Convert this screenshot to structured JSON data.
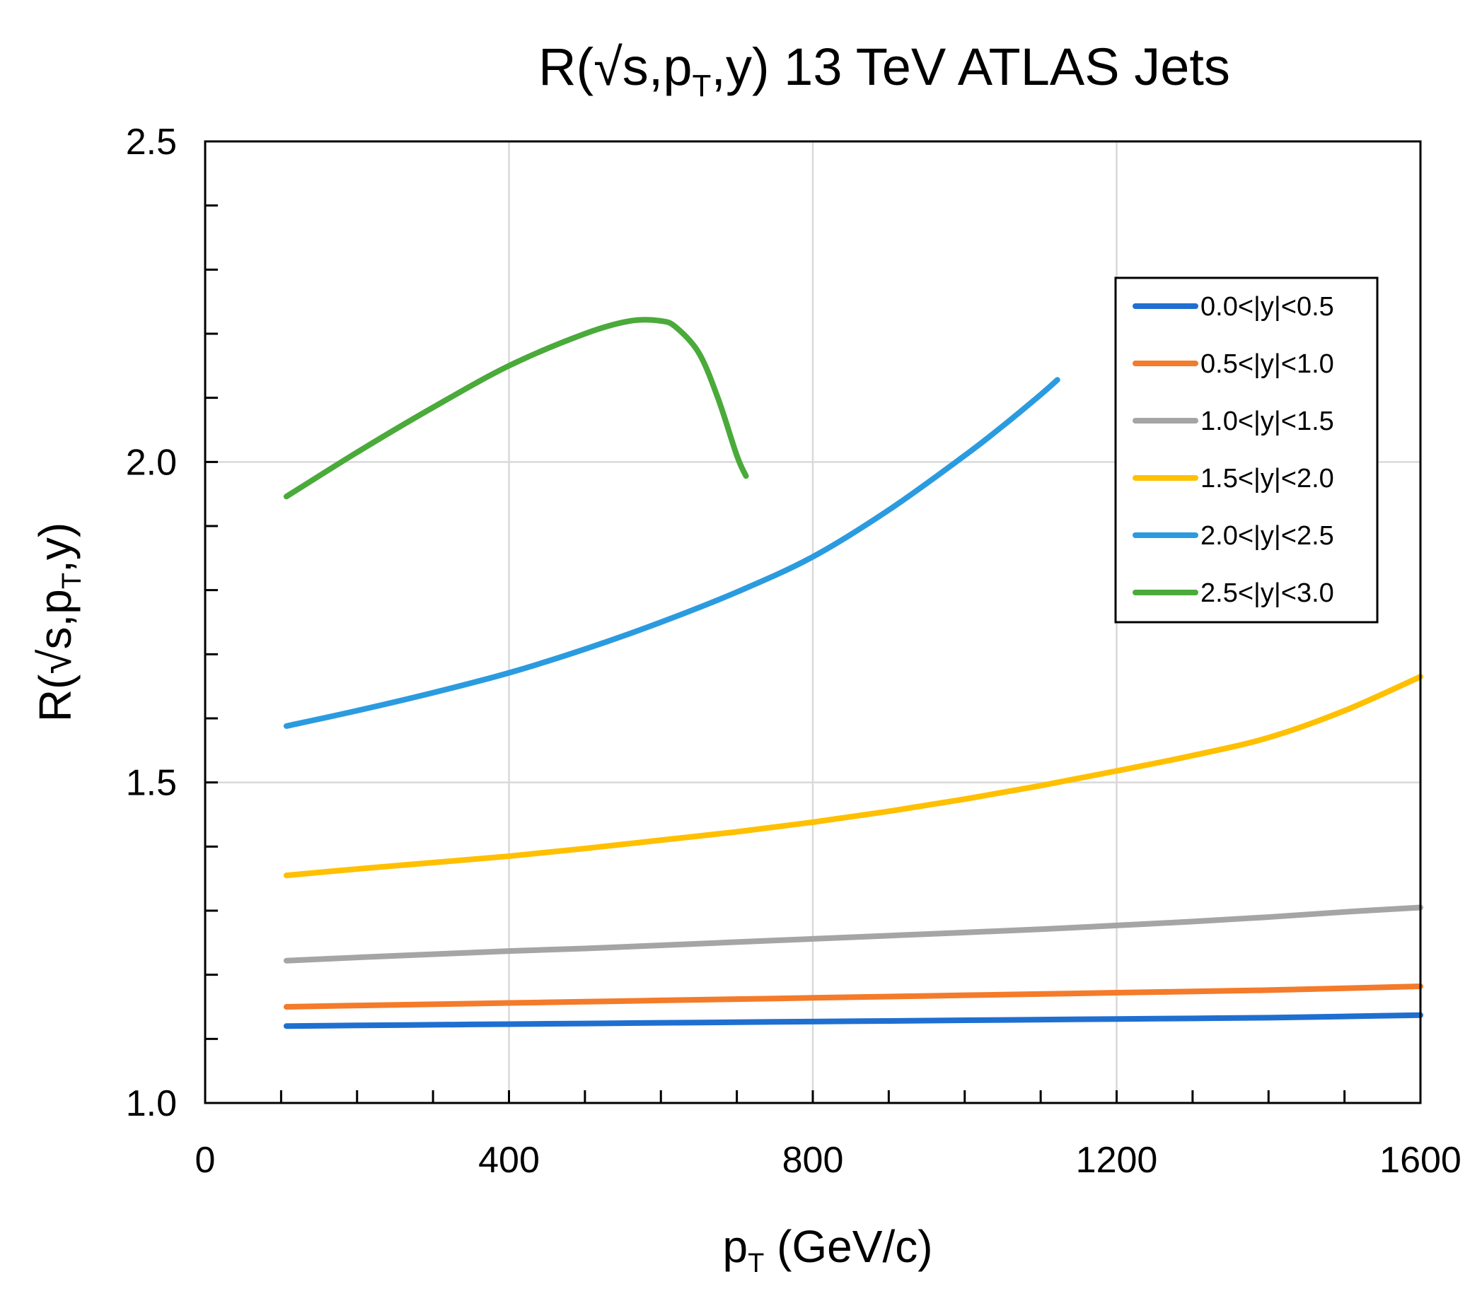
{
  "chart_data": {
    "type": "line",
    "title": {
      "pre": "R(√s,p",
      "sub": "T",
      "post": ",y) 13 TeV ATLAS Jets"
    },
    "xlabel": {
      "pre": "p",
      "sub": "T",
      "post": " (GeV/c)"
    },
    "ylabel": {
      "pre": "R(√s,p",
      "sub": "T",
      "post": ",y)"
    },
    "xlim": [
      0,
      1600
    ],
    "ylim": [
      1.0,
      2.5
    ],
    "xticks": [
      "0",
      "400",
      "800",
      "1200",
      "1600"
    ],
    "yticks": [
      "1.0",
      "1.5",
      "2.0",
      "2.5"
    ],
    "grid": true,
    "legend_position": "right, upper",
    "series": [
      {
        "name": "0.0<|y|<0.5",
        "color": "#1f6fd1",
        "x": [
          107,
          200,
          300,
          400,
          500,
          600,
          700,
          800,
          900,
          1000,
          1100,
          1200,
          1300,
          1400,
          1500,
          1600
        ],
        "y": [
          1.12,
          1.121,
          1.122,
          1.123,
          1.124,
          1.125,
          1.126,
          1.127,
          1.128,
          1.129,
          1.13,
          1.131,
          1.132,
          1.133,
          1.135,
          1.137
        ]
      },
      {
        "name": "0.5<|y|<1.0",
        "color": "#f47b2a",
        "x": [
          107,
          200,
          300,
          400,
          500,
          600,
          700,
          800,
          900,
          1000,
          1100,
          1200,
          1300,
          1400,
          1500,
          1600
        ],
        "y": [
          1.15,
          1.152,
          1.154,
          1.156,
          1.158,
          1.16,
          1.162,
          1.164,
          1.166,
          1.168,
          1.17,
          1.172,
          1.174,
          1.176,
          1.179,
          1.182
        ]
      },
      {
        "name": "1.0<|y|<1.5",
        "color": "#a5a5a5",
        "x": [
          107,
          200,
          300,
          400,
          500,
          600,
          700,
          800,
          900,
          1000,
          1100,
          1200,
          1300,
          1400,
          1500,
          1600
        ],
        "y": [
          1.222,
          1.227,
          1.232,
          1.237,
          1.241,
          1.246,
          1.251,
          1.256,
          1.261,
          1.266,
          1.271,
          1.277,
          1.283,
          1.29,
          1.298,
          1.305
        ]
      },
      {
        "name": "1.5<|y|<2.0",
        "color": "#ffc000",
        "x": [
          107,
          200,
          300,
          400,
          500,
          600,
          700,
          800,
          900,
          1000,
          1100,
          1200,
          1300,
          1400,
          1500,
          1600
        ],
        "y": [
          1.355,
          1.365,
          1.375,
          1.385,
          1.397,
          1.41,
          1.423,
          1.438,
          1.455,
          1.474,
          1.495,
          1.518,
          1.542,
          1.57,
          1.612,
          1.665
        ]
      },
      {
        "name": "2.0<|y|<2.5",
        "color": "#2b9be0",
        "x": [
          107,
          200,
          300,
          400,
          500,
          600,
          700,
          800,
          900,
          1000,
          1050,
          1100,
          1122
        ],
        "y": [
          1.588,
          1.612,
          1.64,
          1.671,
          1.708,
          1.75,
          1.797,
          1.852,
          1.925,
          2.01,
          2.056,
          2.105,
          2.128
        ]
      },
      {
        "name": "2.5<|y|<3.0",
        "color": "#4aaa3a",
        "x": [
          107,
          200,
          300,
          400,
          500,
          560,
          600,
          620,
          650,
          675,
          700,
          712
        ],
        "y": [
          1.946,
          2.015,
          2.085,
          2.15,
          2.2,
          2.22,
          2.22,
          2.21,
          2.17,
          2.1,
          2.01,
          1.978
        ]
      }
    ]
  }
}
